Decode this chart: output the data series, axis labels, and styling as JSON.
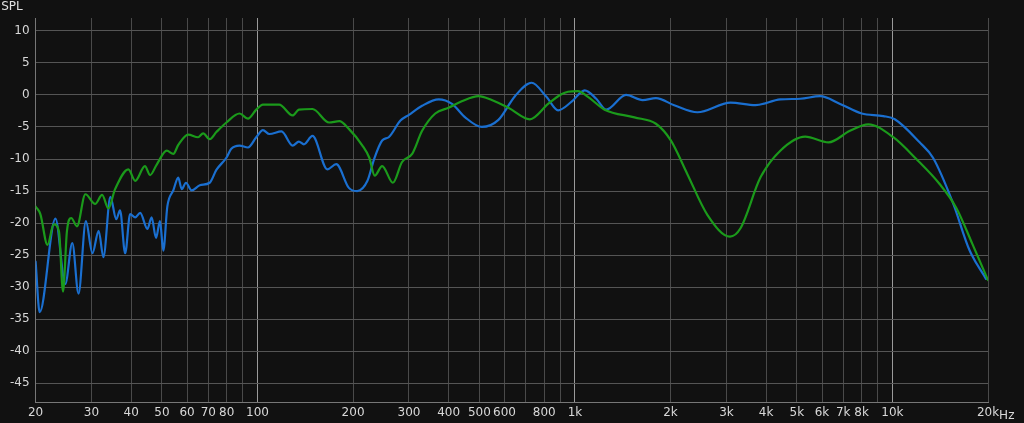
{
  "chart_data": {
    "type": "line",
    "ylabel": "SPL",
    "xlabel": "Hz",
    "log": "x",
    "grid": true,
    "legend": false,
    "marker": "none",
    "line_style": "solid",
    "xlim": [
      20,
      20000
    ],
    "ylim": [
      -48,
      12
    ],
    "xticks": [
      20,
      30,
      40,
      50,
      60,
      70,
      80,
      {
        "value": 90,
        "label": null
      },
      100,
      200,
      300,
      400,
      500,
      600,
      {
        "value": 700,
        "label": null
      },
      800,
      {
        "value": 900,
        "label": null
      },
      {
        "value": 1000,
        "label": "1k"
      },
      {
        "value": 2000,
        "label": "2k"
      },
      {
        "value": 3000,
        "label": "3k"
      },
      {
        "value": 4000,
        "label": "4k"
      },
      {
        "value": 5000,
        "label": "5k"
      },
      {
        "value": 6000,
        "label": "6k"
      },
      {
        "value": 7000,
        "label": "7k"
      },
      {
        "value": 8000,
        "label": "8k"
      },
      {
        "value": 9000,
        "label": null
      },
      {
        "value": 10000,
        "label": "10k"
      },
      {
        "value": 20000,
        "label": "20k"
      }
    ],
    "yticks": [
      -45,
      -40,
      -35,
      -30,
      -25,
      -20,
      -15,
      -10,
      -5,
      0,
      5,
      10
    ],
    "series": [
      {
        "color": "#1b9a1b",
        "x": [
          20,
          20.7,
          21.8,
          22.8,
          23.7,
          24.4,
          25.1,
          25.9,
          27,
          28.7,
          30.8,
          32.4,
          33.9,
          35.6,
          39.2,
          41.2,
          44.2,
          45.9,
          48.1,
          51.8,
          54.3,
          56.3,
          60.5,
          65,
          67.4,
          70.7,
          74.2,
          79.8,
          87.8,
          93.3,
          99.1,
          104,
          117,
          129,
          135,
          149,
          168,
          181,
          194,
          214,
          225,
          234,
          247,
          267,
          285,
          307,
          330,
          363,
          400,
          440,
          497,
          547,
          617,
          721,
          823,
          906,
          951,
          1022,
          1099,
          1240,
          1539,
          1799,
          2004,
          2262,
          2612,
          3078,
          3322,
          3838,
          4434,
          5312,
          6290,
          7350,
          8394,
          10060,
          11890,
          14080,
          15880,
          17910,
          20000
        ],
        "values": [
          -17.4,
          -18.6,
          -23.4,
          -20.2,
          -21.3,
          -30.7,
          -21.3,
          -19.2,
          -20.5,
          -15.5,
          -17,
          -15.6,
          -17.7,
          -14.7,
          -11.6,
          -13.4,
          -11.1,
          -12.5,
          -10.9,
          -8.7,
          -9.2,
          -7.8,
          -6.2,
          -6.6,
          -6,
          -6.9,
          -5.8,
          -4.3,
          -2.9,
          -3.7,
          -2.3,
          -1.5,
          -1.5,
          -3.2,
          -2.3,
          -2.2,
          -4.3,
          -4.1,
          -5.3,
          -7.9,
          -9.8,
          -12.6,
          -11.1,
          -13.7,
          -10.5,
          -9.2,
          -5.6,
          -2.9,
          -2,
          -1,
          -0.2,
          -0.8,
          -2,
          -3.8,
          -1.4,
          0.1,
          0.5,
          0.6,
          -0.3,
          -2.3,
          -3.5,
          -4.5,
          -7.1,
          -12.4,
          -18.7,
          -22.1,
          -20.8,
          -12.9,
          -8.7,
          -6.5,
          -7.4,
          -5.6,
          -4.6,
          -6.6,
          -10,
          -13.9,
          -17.6,
          -23.4,
          -28.9
        ]
      },
      {
        "color": "#1a6fd0",
        "x": [
          20,
          20.6,
          23.1,
          24.8,
          26.1,
          27.3,
          28.8,
          30.2,
          31.6,
          32.7,
          34.4,
          35.9,
          36.9,
          38.3,
          39.7,
          41.2,
          42.7,
          45,
          46.4,
          47.9,
          49.3,
          50.5,
          52,
          54.3,
          56.3,
          57.7,
          59.5,
          62,
          65.8,
          70.7,
          74.2,
          79.8,
          82.7,
          87.8,
          93.3,
          99.1,
          104,
          109,
          119,
          129,
          135,
          140,
          149,
          166,
          177,
          194,
          206,
          222,
          233,
          247,
          259,
          282,
          300,
          330,
          372,
          410,
          451,
          509,
          574,
          647,
          730,
          813,
          885,
          974,
          1073,
          1167,
          1254,
          1448,
          1634,
          1799,
          2054,
          2430,
          3090,
          3702,
          4434,
          5124,
          5918,
          6840,
          7998,
          9356,
          10170,
          12180,
          13420,
          15500,
          17480,
          19710
        ],
        "values": [
          -26,
          -33.9,
          -19.3,
          -29.5,
          -23.1,
          -31,
          -19.7,
          -24.7,
          -21.2,
          -25.3,
          -15.9,
          -19.4,
          -18,
          -24.7,
          -18.6,
          -19.1,
          -18.4,
          -20.9,
          -19.1,
          -22.3,
          -19.7,
          -24.3,
          -17.4,
          -14.9,
          -12.9,
          -14.7,
          -13.7,
          -14.9,
          -14.1,
          -13.7,
          -11.7,
          -9.8,
          -8.4,
          -7.9,
          -8.2,
          -6.6,
          -5.5,
          -6.1,
          -5.7,
          -7.9,
          -7.3,
          -7.7,
          -6.4,
          -11.6,
          -10.8,
          -14.5,
          -15,
          -13.4,
          -10,
          -7.1,
          -6.6,
          -4,
          -3.1,
          -1.7,
          -0.7,
          -1.4,
          -3.5,
          -5,
          -3.9,
          -0.2,
          1.9,
          -0.3,
          -2.4,
          -1.1,
          0.7,
          -0.6,
          -2.3,
          0,
          -0.8,
          -0.5,
          -1.6,
          -2.7,
          -1.2,
          -1.6,
          -0.7,
          -0.6,
          -0.2,
          -1.4,
          -2.9,
          -3.3,
          -3.8,
          -7.4,
          -9.8,
          -16.8,
          -24.2,
          -28.7
        ]
      }
    ]
  }
}
